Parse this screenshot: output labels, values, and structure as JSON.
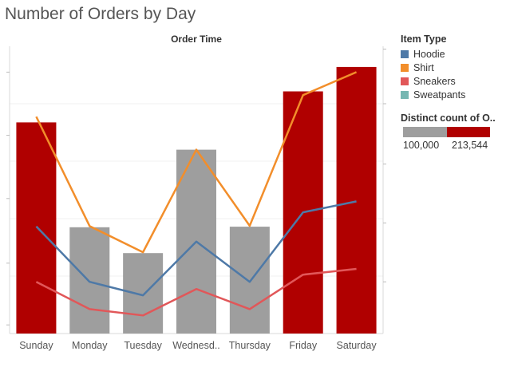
{
  "title": "Number of Orders by Day",
  "chart_data": {
    "type": "bar",
    "top_axis_title": "Order Time",
    "categories": [
      "Sunday",
      "Monday",
      "Tuesday",
      "Wednesd..",
      "Thursday",
      "Friday",
      "Saturday"
    ],
    "bar_values": [
      0.735,
      0.37,
      0.28,
      0.64,
      0.372,
      0.843,
      0.928
    ],
    "bar_colors": [
      "#b00000",
      "#9e9e9e",
      "#9e9e9e",
      "#9e9e9e",
      "#9e9e9e",
      "#b00000",
      "#b00000"
    ],
    "lines": [
      {
        "name": "Hoodie",
        "color": "#4e79a7",
        "values": [
          0.373,
          0.18,
          0.133,
          0.32,
          0.18,
          0.422,
          0.46
        ]
      },
      {
        "name": "Shirt",
        "color": "#f28e2b",
        "values": [
          0.755,
          0.374,
          0.283,
          0.64,
          0.375,
          0.83,
          0.91
        ]
      },
      {
        "name": "Sneakers",
        "color": "#e15759",
        "values": [
          0.18,
          0.085,
          0.063,
          0.155,
          0.085,
          0.205,
          0.225
        ]
      }
    ],
    "y_range": [
      0,
      1
    ],
    "grid": true,
    "legend_position": "right"
  },
  "legend": {
    "title": "Item Type",
    "items": [
      {
        "label": "Hoodie",
        "color": "#4e79a7"
      },
      {
        "label": "Shirt",
        "color": "#f28e2b"
      },
      {
        "label": "Sneakers",
        "color": "#e15759"
      },
      {
        "label": "Sweatpants",
        "color": "#76b7b2"
      }
    ]
  },
  "size_legend": {
    "title": "Distinct count of O..",
    "min_label": "100,000",
    "max_label": "213,544"
  }
}
